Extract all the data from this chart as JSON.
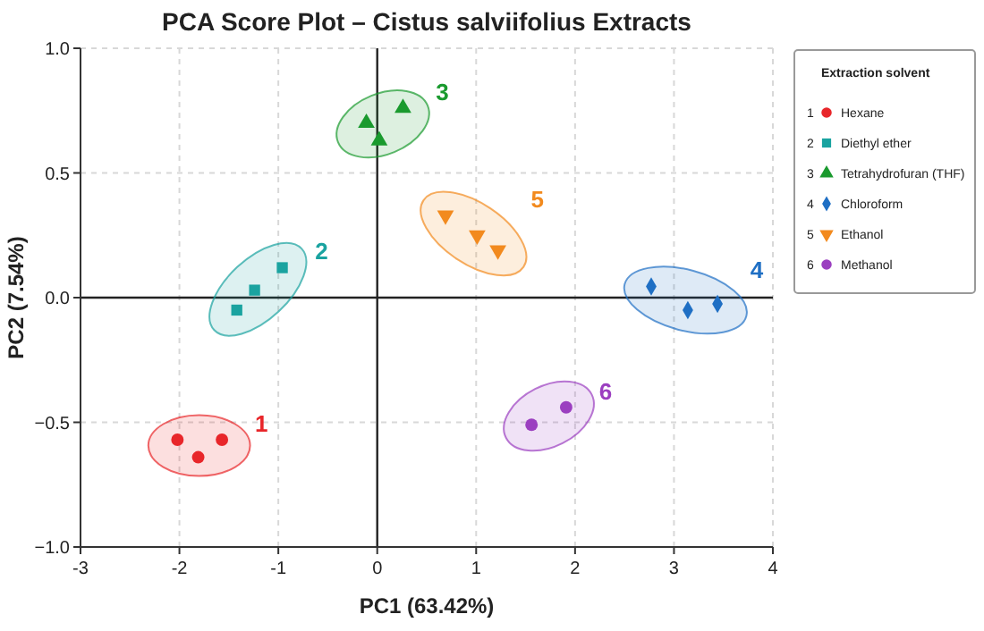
{
  "chart_data": {
    "type": "scatter",
    "title": "PCA Score Plot – Cistus salviifolius Extracts",
    "xlabel": "PC1 (63.42%)",
    "ylabel": "PC2 (7.54%)",
    "legend_title": "Extraction solvent",
    "xlim": [
      -3,
      4
    ],
    "xticks": [
      -3,
      -2,
      -1,
      0,
      1,
      2,
      3,
      4
    ],
    "ylim": [
      -1,
      1
    ],
    "yticks": [
      {
        "value": -1,
        "label": "−1.0"
      },
      {
        "value": -0.5,
        "label": "−0.5"
      },
      {
        "value": 0,
        "label": "0.0"
      },
      {
        "value": 0.5,
        "label": "0.5"
      },
      {
        "value": 1,
        "label": "1.0"
      }
    ],
    "grid": true,
    "legend": "right",
    "series": [
      {
        "name": "Hexane",
        "color": "#e8262a",
        "marker": "circle",
        "x": [
          -2.02,
          -1.81,
          -1.57
        ],
        "values": [
          -0.57,
          -0.64,
          -0.57
        ]
      },
      {
        "name": "Diethyl ether",
        "color": "#1aa3a0",
        "marker": "square",
        "x": [
          -1.42,
          -1.24,
          -0.96
        ],
        "values": [
          -0.05,
          0.03,
          0.12
        ]
      },
      {
        "name": "Tetrahydrofuran (THF)",
        "color": "#1a9a2e",
        "marker": "triangle",
        "x": [
          -0.11,
          0.02,
          0.26
        ],
        "values": [
          0.7,
          0.63,
          0.76
        ]
      },
      {
        "name": "Chloroform",
        "color": "#1f6fc4",
        "marker": "diamond",
        "x": [
          2.77,
          3.14,
          3.44
        ],
        "values": [
          0.045,
          -0.05,
          -0.025
        ]
      },
      {
        "name": "Ethanol",
        "color": "#f28a1e",
        "marker": "triangle-down",
        "x": [
          0.69,
          1.01,
          1.22
        ],
        "values": [
          0.33,
          0.25,
          0.19
        ]
      },
      {
        "name": "Methanol",
        "color": "#9b3fc0",
        "marker": "circle",
        "x": [
          1.56,
          1.91
        ],
        "values": [
          -0.51,
          -0.44
        ]
      }
    ],
    "annotations": [
      "1",
      "2",
      "3",
      "4",
      "5",
      "6"
    ]
  }
}
